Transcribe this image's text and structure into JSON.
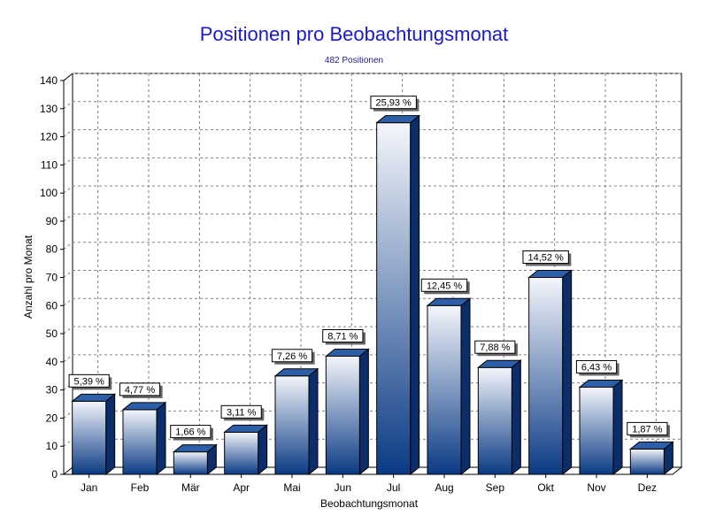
{
  "chart_data": {
    "type": "bar",
    "title": "Positionen pro Beobachtungsmonat",
    "subtitle": "482 Positionen",
    "xlabel": "Beobachtungsmonat",
    "ylabel": "Anzahl pro Monat",
    "categories": [
      "Jan",
      "Feb",
      "Mär",
      "Apr",
      "Mai",
      "Jun",
      "Jul",
      "Aug",
      "Sep",
      "Okt",
      "Nov",
      "Dez"
    ],
    "values": [
      26,
      23,
      8,
      15,
      35,
      42,
      125,
      60,
      38,
      70,
      31,
      9
    ],
    "data_labels": [
      "5,39 %",
      "4,77 %",
      "1,66 %",
      "3,11 %",
      "7,26 %",
      "8,71 %",
      "25,93 %",
      "12,45 %",
      "7,88 %",
      "14,52 %",
      "6,43 %",
      "1,87 %"
    ],
    "ylim": [
      0,
      140
    ],
    "yticks": [
      0,
      10,
      20,
      30,
      40,
      50,
      60,
      70,
      80,
      90,
      100,
      110,
      120,
      130,
      140
    ],
    "grid": true,
    "bar_style": "3d-gradient",
    "colors": {
      "title": "#1a1acc",
      "subtitle": "#1a1a99",
      "bar_top": "#f4f6fb",
      "bar_bottom": "#0a3a84",
      "bar_side": "#0b2e6a",
      "bar_cap": "#2c5fa8",
      "grid": "#808080"
    }
  }
}
